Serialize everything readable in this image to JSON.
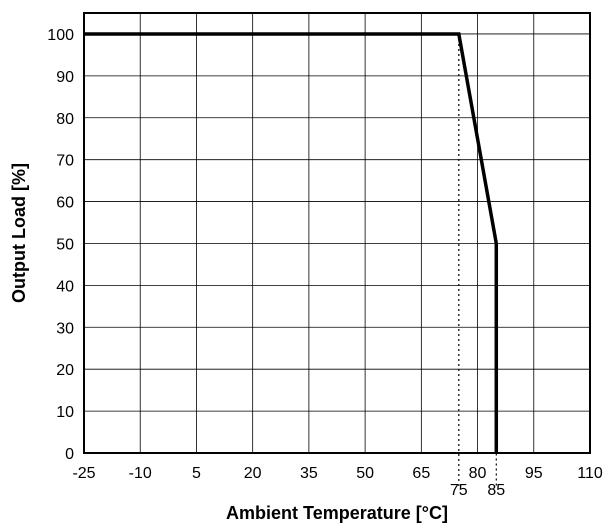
{
  "chart_data": {
    "type": "line",
    "title": "",
    "xlabel": "Ambient Temperature [°C]",
    "ylabel": "Output Load [%]",
    "xlim": [
      -25,
      110
    ],
    "ylim": [
      0,
      105
    ],
    "x_ticks": [
      -25,
      -10,
      5,
      20,
      35,
      50,
      65,
      80,
      95,
      110
    ],
    "y_ticks": [
      0,
      10,
      20,
      30,
      40,
      50,
      60,
      70,
      80,
      90,
      100
    ],
    "grid": true,
    "series": [
      {
        "x": [
          -25,
          75,
          85,
          85
        ],
        "y": [
          100,
          100,
          50,
          0
        ],
        "color": "#000000"
      }
    ],
    "annotations": [
      {
        "label": "75",
        "x": 75,
        "y": 100
      },
      {
        "label": "85",
        "x": 85,
        "y": 50
      }
    ]
  }
}
